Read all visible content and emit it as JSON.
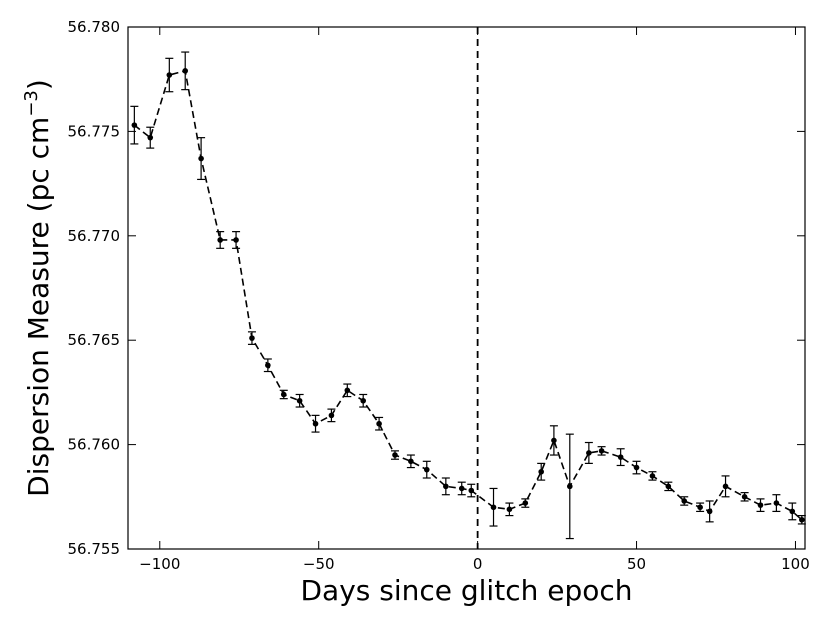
{
  "chart_data": {
    "type": "line",
    "title": "",
    "xlabel": "Days since glitch epoch",
    "ylabel": {
      "prefix": "Dispersion Measure (pc cm",
      "superscript": "−3",
      "suffix": ")"
    },
    "xlim": [
      -110,
      103
    ],
    "ylim": [
      56.755,
      56.78
    ],
    "xticks": [
      -100,
      -50,
      0,
      50,
      100
    ],
    "xtick_labels": [
      "−100",
      "−50",
      "0",
      "50",
      "100"
    ],
    "yticks": [
      56.755,
      56.76,
      56.765,
      56.77,
      56.775,
      56.78
    ],
    "ytick_labels": [
      "56.755",
      "56.760",
      "56.765",
      "56.770",
      "56.775",
      "56.780"
    ],
    "grid": false,
    "legend": "none",
    "vline": {
      "x": 0,
      "style": "dashed"
    },
    "series": [
      {
        "marker": "circle",
        "line_style": "dashed",
        "color": "#000000",
        "points": [
          {
            "x": -108,
            "y": 56.7753,
            "err": 0.0009
          },
          {
            "x": -103,
            "y": 56.7747,
            "err": 0.0005
          },
          {
            "x": -97,
            "y": 56.7777,
            "err": 0.0008
          },
          {
            "x": -92,
            "y": 56.7779,
            "err": 0.0009
          },
          {
            "x": -87,
            "y": 56.7737,
            "err": 0.001
          },
          {
            "x": -81,
            "y": 56.7698,
            "err": 0.0004
          },
          {
            "x": -76,
            "y": 56.7698,
            "err": 0.0004
          },
          {
            "x": -71,
            "y": 56.7651,
            "err": 0.0003
          },
          {
            "x": -66,
            "y": 56.7638,
            "err": 0.0003
          },
          {
            "x": -61,
            "y": 56.7624,
            "err": 0.0002
          },
          {
            "x": -56,
            "y": 56.7621,
            "err": 0.0003
          },
          {
            "x": -51,
            "y": 56.761,
            "err": 0.0004
          },
          {
            "x": -46,
            "y": 56.7614,
            "err": 0.0003
          },
          {
            "x": -41,
            "y": 56.7626,
            "err": 0.0003
          },
          {
            "x": -36,
            "y": 56.7621,
            "err": 0.0003
          },
          {
            "x": -31,
            "y": 56.761,
            "err": 0.0003
          },
          {
            "x": -26,
            "y": 56.7595,
            "err": 0.0002
          },
          {
            "x": -21,
            "y": 56.7592,
            "err": 0.0003
          },
          {
            "x": -16,
            "y": 56.7588,
            "err": 0.0004
          },
          {
            "x": -10,
            "y": 56.758,
            "err": 0.0004
          },
          {
            "x": -5,
            "y": 56.7579,
            "err": 0.0003
          },
          {
            "x": -2,
            "y": 56.7578,
            "err": 0.0003
          },
          {
            "x": 5,
            "y": 56.757,
            "err": 0.0009
          },
          {
            "x": 10,
            "y": 56.7569,
            "err": 0.0003
          },
          {
            "x": 15,
            "y": 56.7572,
            "err": 0.0002
          },
          {
            "x": 20,
            "y": 56.7587,
            "err": 0.0004
          },
          {
            "x": 24,
            "y": 56.7602,
            "err": 0.0007
          },
          {
            "x": 29,
            "y": 56.758,
            "err": 0.0025
          },
          {
            "x": 35,
            "y": 56.7596,
            "err": 0.0005
          },
          {
            "x": 39,
            "y": 56.7597,
            "err": 0.0002
          },
          {
            "x": 45,
            "y": 56.7594,
            "err": 0.0004
          },
          {
            "x": 50,
            "y": 56.7589,
            "err": 0.0003
          },
          {
            "x": 55,
            "y": 56.7585,
            "err": 0.0002
          },
          {
            "x": 60,
            "y": 56.758,
            "err": 0.0002
          },
          {
            "x": 65,
            "y": 56.7573,
            "err": 0.0002
          },
          {
            "x": 70,
            "y": 56.757,
            "err": 0.0002
          },
          {
            "x": 73,
            "y": 56.7568,
            "err": 0.0005
          },
          {
            "x": 78,
            "y": 56.758,
            "err": 0.0005
          },
          {
            "x": 84,
            "y": 56.7575,
            "err": 0.0002
          },
          {
            "x": 89,
            "y": 56.7571,
            "err": 0.0003
          },
          {
            "x": 94,
            "y": 56.7572,
            "err": 0.0004
          },
          {
            "x": 99,
            "y": 56.7568,
            "err": 0.0004
          },
          {
            "x": 102,
            "y": 56.7564,
            "err": 0.0002
          }
        ]
      }
    ]
  }
}
